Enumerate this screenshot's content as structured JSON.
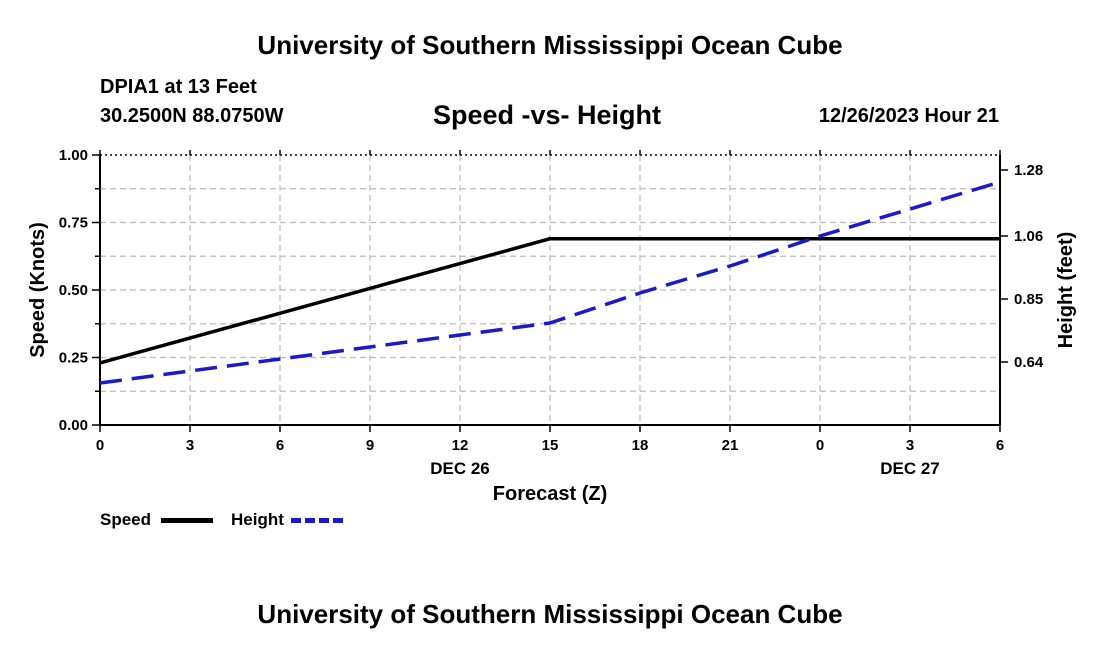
{
  "header": {
    "title": "University of Southern Mississippi Ocean Cube",
    "station": "DPIA1 at 13 Feet",
    "coords": "30.2500N  88.0750W",
    "subtitle": "Speed -vs- Height",
    "timestamp": "12/26/2023 Hour 21"
  },
  "footer": {
    "title": "University of Southern Mississippi Ocean Cube"
  },
  "legend": {
    "speed_label": "Speed",
    "height_label": "Height"
  },
  "colors": {
    "speed": "#000000",
    "height": "#1a1acc",
    "grid": "#bbbbbb"
  },
  "chart_data": {
    "type": "line",
    "title": "Speed -vs- Height",
    "xlabel": "Forecast (Z)",
    "ylabel": "Speed (Knots)",
    "y2label": "Height (feet)",
    "x": [
      0,
      3,
      6,
      9,
      12,
      15,
      18,
      21,
      24,
      27,
      30
    ],
    "x_tick_labels": [
      "0",
      "3",
      "6",
      "9",
      "12",
      "15",
      "18",
      "21",
      "0",
      "3",
      "6"
    ],
    "date_labels": [
      {
        "x": 12,
        "label": "DEC 26"
      },
      {
        "x": 27,
        "label": "DEC 27"
      }
    ],
    "xlim": [
      0,
      30
    ],
    "ylim": [
      0,
      1.0
    ],
    "y_ticks": [
      0.0,
      0.25,
      0.5,
      0.75,
      1.0
    ],
    "y_tick_labels": [
      "0.00",
      "0.25",
      "0.50",
      "0.75",
      "1.00"
    ],
    "y2lim": [
      0.43,
      1.33
    ],
    "y2_ticks": [
      0.64,
      0.85,
      1.06,
      1.28
    ],
    "y2_tick_labels": [
      "0.64",
      "0.85",
      "1.06",
      "1.28"
    ],
    "grid": true,
    "legend_position": "bottom-left",
    "series": [
      {
        "name": "Speed",
        "axis": "left",
        "style": "solid",
        "x": [
          0,
          15,
          30
        ],
        "values": [
          0.23,
          0.69,
          0.69
        ]
      },
      {
        "name": "Height",
        "axis": "right",
        "style": "dashed",
        "x": [
          0,
          3,
          6,
          9,
          12,
          15,
          18,
          21,
          24,
          27,
          30
        ],
        "values": [
          0.57,
          0.61,
          0.65,
          0.69,
          0.73,
          0.77,
          0.87,
          0.96,
          1.06,
          1.15,
          1.24
        ]
      }
    ]
  }
}
